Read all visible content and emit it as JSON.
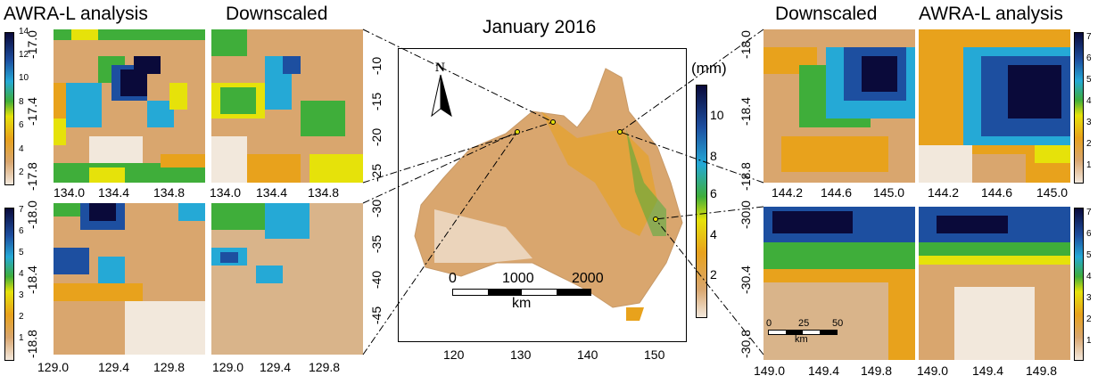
{
  "main_map": {
    "title": "January 2016",
    "unit_label": "(mm)",
    "north_label": "N",
    "x_ticks": [
      "120",
      "130",
      "140",
      "150"
    ],
    "y_ticks": [
      "-10",
      "-15",
      "-20",
      "-25",
      "-30",
      "-35",
      "-40",
      "-45"
    ],
    "scale_bar": {
      "labels": [
        "0",
        "1000",
        "2000"
      ],
      "unit": "km"
    },
    "colorbar_ticks": [
      "2",
      "4",
      "6",
      "8",
      "10"
    ]
  },
  "left_top": {
    "analysis_title": "AWRA-L analysis",
    "downscaled_title": "Downscaled",
    "x_ticks": [
      "134.0",
      "134.4",
      "134.8"
    ],
    "x_ticks_downscaled": [
      "134.0",
      "134.4",
      "134.8"
    ],
    "y_ticks": [
      "-17.0",
      "-17.4",
      "-17.8"
    ],
    "colorbar_ticks": [
      "14",
      "12",
      "10",
      "8",
      "6",
      "4",
      "2"
    ]
  },
  "left_bottom": {
    "x_ticks": [
      "129.0",
      "129.4",
      "129.8"
    ],
    "x_ticks_downscaled": [
      "129.0",
      "129.4",
      "129.8"
    ],
    "y_ticks": [
      "-18.0",
      "-18.4",
      "-18.8"
    ],
    "colorbar_ticks": [
      "7",
      "6",
      "5",
      "4",
      "3",
      "2",
      "1"
    ]
  },
  "right_top": {
    "downscaled_title": "Downscaled",
    "analysis_title": "AWRA-L analysis",
    "x_ticks": [
      "144.2",
      "144.6",
      "145.0"
    ],
    "x_ticks_analysis": [
      "144.2",
      "144.6",
      "145.0"
    ],
    "y_ticks": [
      "-18.0",
      "-18.4",
      "-18.8"
    ],
    "colorbar_ticks": [
      "7",
      "6",
      "5",
      "4",
      "3",
      "2",
      "1"
    ]
  },
  "right_bottom": {
    "x_ticks": [
      "149.0",
      "149.4",
      "149.8"
    ],
    "x_ticks_analysis": [
      "149.0",
      "149.4",
      "149.8"
    ],
    "y_ticks": [
      "-30.0",
      "-30.4",
      "-30.8"
    ],
    "scale_labels": [
      "0",
      "25",
      "50"
    ],
    "scale_unit": "km",
    "colorbar_ticks": [
      "7",
      "6",
      "5",
      "4",
      "3",
      "2",
      "1"
    ]
  },
  "colors": {
    "low": "#f2e8dc",
    "tan": "#d9a66e",
    "orange": "#e8a21c",
    "yellow": "#e6e20a",
    "green": "#3fae3a",
    "cyan": "#25a9d6",
    "blue": "#1d4fa0",
    "navy": "#0a0a3a"
  }
}
